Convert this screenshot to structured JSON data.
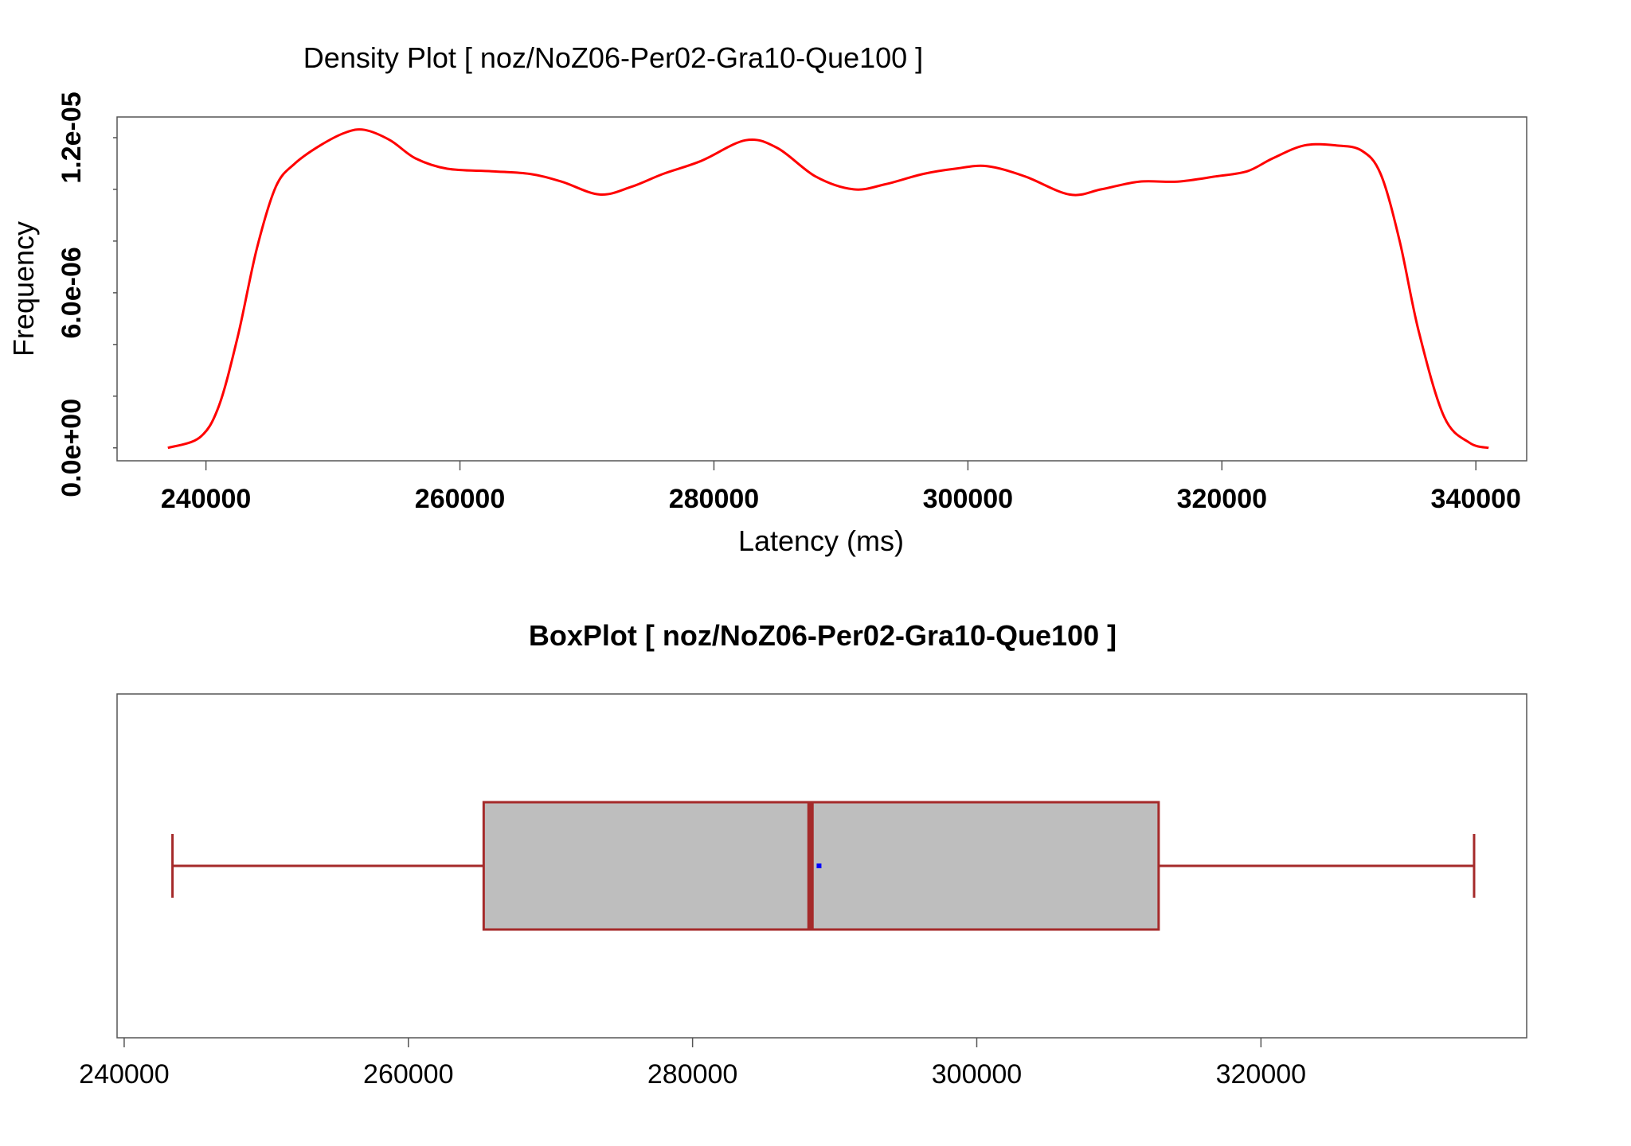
{
  "chart_data": [
    {
      "type": "area",
      "title": "Density Plot [ noz/NoZ06-Per02-Gra10-Que100 ]",
      "xlabel": "Latency (ms)",
      "ylabel": "Frequency",
      "xlim": [
        233000,
        344000
      ],
      "ylim": [
        -5e-07,
        1.28e-05
      ],
      "x_ticks": [
        240000,
        260000,
        280000,
        300000,
        320000,
        340000
      ],
      "x_tick_labels": [
        "240000",
        "260000",
        "280000",
        "300000",
        "320000",
        "340000"
      ],
      "y_ticks": [
        0,
        2e-06,
        4e-06,
        6e-06,
        8e-06,
        1e-05,
        1.2e-05
      ],
      "y_tick_labels": [
        "0.0e+00",
        "",
        "",
        "6.0e-06",
        "",
        "",
        "1.2e-05"
      ],
      "line_color": "#ff0000",
      "grid": false,
      "x": [
        237000,
        239500,
        241000,
        242500,
        244000,
        245500,
        247000,
        249000,
        251000,
        252500,
        254500,
        256500,
        259000,
        262500,
        265500,
        268000,
        271000,
        273500,
        276000,
        279000,
        282500,
        285000,
        288000,
        291000,
        293500,
        296500,
        299000,
        301500,
        304500,
        308000,
        310500,
        313500,
        316500,
        319500,
        322000,
        324000,
        326500,
        329000,
        331000,
        332500,
        334000,
        335500,
        337500,
        339500,
        341000
      ],
      "y": [
        0.0,
        4e-07,
        1.6e-06,
        4.3e-06,
        7.7e-06,
        1.01e-05,
        1.1e-05,
        1.17e-05,
        1.22e-05,
        1.23e-05,
        1.19e-05,
        1.12e-05,
        1.08e-05,
        1.07e-05,
        1.06e-05,
        1.03e-05,
        9.8e-06,
        1.01e-05,
        1.06e-05,
        1.11e-05,
        1.19e-05,
        1.16e-05,
        1.05e-05,
        1e-05,
        1.02e-05,
        1.06e-05,
        1.08e-05,
        1.09e-05,
        1.05e-05,
        9.8e-06,
        1e-05,
        1.03e-05,
        1.03e-05,
        1.05e-05,
        1.07e-05,
        1.12e-05,
        1.17e-05,
        1.17e-05,
        1.15e-05,
        1.06e-05,
        8e-06,
        4.5e-06,
        1.2e-06,
        2e-07,
        0.0
      ]
    },
    {
      "type": "box",
      "title": "BoxPlot [ noz/NoZ06-Per02-Gra10-Que100 ]",
      "xlim": [
        239500,
        338700
      ],
      "x_ticks": [
        240000,
        260000,
        280000,
        300000,
        320000
      ],
      "x_tick_labels": [
        "240000",
        "260000",
        "280000",
        "300000",
        "320000"
      ],
      "whisker_low": 243400,
      "q1": 265300,
      "median": 288300,
      "mean": 288900,
      "q3": 312800,
      "whisker_high": 335000,
      "box_fill": "#bebebe",
      "box_stroke": "#a52a2a",
      "mean_color": "#0000ff"
    }
  ]
}
